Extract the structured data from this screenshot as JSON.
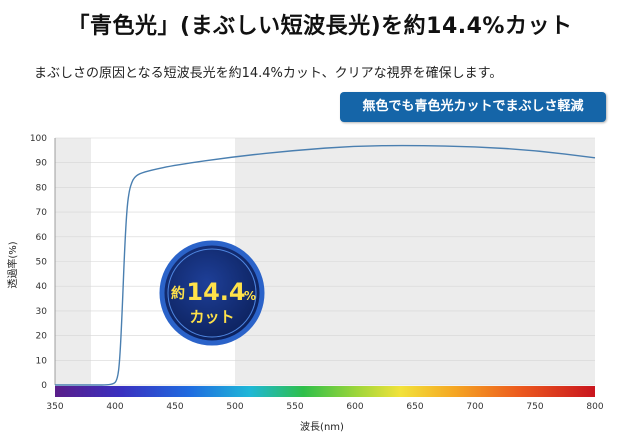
{
  "headline": "「青色光」(まぶしい短波長光)を約14.4%カット",
  "subline": "まぶしさの原因となる短波長光を約14.4%カット、クリアな視界を確保します。",
  "badge": "無色でも青色光カットでまぶしさ軽減",
  "callout": {
    "prefix": "約",
    "value": "14.4",
    "unit": "%",
    "label": "カット"
  },
  "colors": {
    "curve": "#4a7fb0",
    "badge": "#1565a8",
    "shade": "#ececec",
    "callout_ring": "#1c4fae"
  },
  "chart_data": {
    "type": "line",
    "title": "",
    "xlabel": "波長(nm)",
    "ylabel": "透過率(%)",
    "xlim": [
      350,
      800
    ],
    "ylim": [
      0,
      100
    ],
    "xticks": [
      350,
      400,
      450,
      500,
      550,
      600,
      650,
      700,
      750,
      800
    ],
    "yticks": [
      0,
      10,
      20,
      30,
      40,
      50,
      60,
      70,
      80,
      90,
      100
    ],
    "shaded_x_ranges": [
      [
        350,
        380
      ],
      [
        500,
        800
      ]
    ],
    "spectrum_bar": true,
    "grid": true,
    "series": [
      {
        "name": "",
        "x": [
          350,
          380,
          398,
          402,
          404,
          406,
          408,
          410,
          412,
          414,
          416,
          420,
          430,
          450,
          500,
          550,
          600,
          650,
          700,
          750,
          800
        ],
        "y": [
          0,
          0,
          0,
          2,
          10,
          30,
          55,
          72,
          79,
          82,
          84,
          85.5,
          87,
          89,
          92.5,
          95,
          96.8,
          97,
          96.5,
          95,
          92
        ]
      }
    ]
  }
}
